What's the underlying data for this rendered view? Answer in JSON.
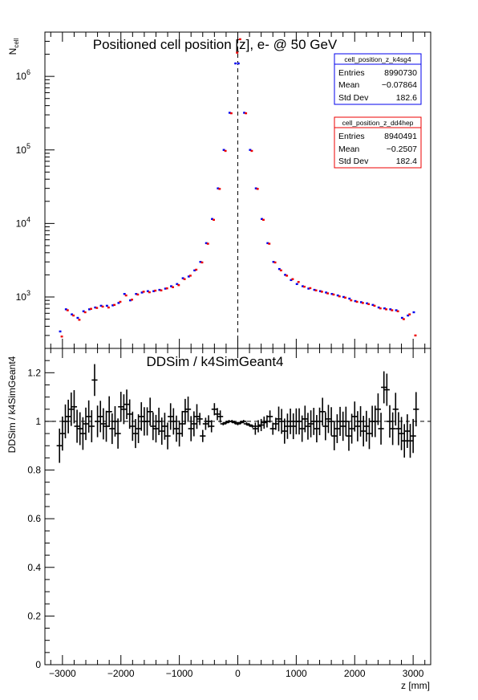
{
  "chart_data": [
    {
      "type": "scatter",
      "title": "Positioned cell position [z],  e- @ 50 GeV",
      "ylabel_main": "N",
      "ylabel_sub": "cell",
      "yscale": "log",
      "ylim": [
        200,
        4000000
      ],
      "xlim": [
        -3300,
        3300
      ],
      "y_ticks": [
        {
          "value": 1000,
          "base": "10",
          "exp": "3"
        },
        {
          "value": 10000,
          "base": "10",
          "exp": "4"
        },
        {
          "value": 100000,
          "base": "10",
          "exp": "5"
        },
        {
          "value": 1000000,
          "base": "10",
          "exp": "6"
        }
      ],
      "x_grid": false,
      "y_grid": false,
      "vertical_line_x": 0,
      "series": [
        {
          "name": "cell_position_z_k4sg4",
          "color": "#0000ee",
          "x": [
            -3025,
            -2925,
            -2825,
            -2725,
            -2625,
            -2525,
            -2425,
            -2325,
            -2225,
            -2125,
            -2025,
            -1925,
            -1825,
            -1725,
            -1625,
            -1525,
            -1425,
            -1325,
            -1225,
            -1125,
            -1025,
            -925,
            -825,
            -725,
            -625,
            -525,
            -425,
            -325,
            -225,
            -125,
            -25,
            25,
            125,
            225,
            325,
            425,
            525,
            625,
            725,
            825,
            925,
            1025,
            1125,
            1225,
            1325,
            1425,
            1525,
            1625,
            1725,
            1825,
            1925,
            2025,
            2125,
            2225,
            2325,
            2425,
            2525,
            2625,
            2725,
            2825,
            2925,
            3025
          ],
          "y": [
            340,
            680,
            580,
            520,
            640,
            680,
            720,
            760,
            760,
            770,
            830,
            1100,
            900,
            1100,
            1150,
            1200,
            1200,
            1250,
            1300,
            1400,
            1500,
            1800,
            1900,
            2300,
            3000,
            5400,
            11500,
            30000,
            100000,
            320000,
            1500000,
            1500000,
            320000,
            100000,
            30000,
            11500,
            5400,
            3000,
            2400,
            2000,
            1700,
            1500,
            1400,
            1300,
            1250,
            1200,
            1150,
            1100,
            1050,
            1000,
            950,
            880,
            850,
            820,
            780,
            720,
            700,
            680,
            660,
            520,
            560,
            620
          ]
        },
        {
          "name": "cell_position_z_dd4hep",
          "color": "#ee0000",
          "x": [
            -3025,
            -2925,
            -2825,
            -2725,
            -2625,
            -2525,
            -2425,
            -2325,
            -2225,
            -2125,
            -2025,
            -1925,
            -1825,
            -1725,
            -1625,
            -1525,
            -1425,
            -1325,
            -1225,
            -1125,
            -1025,
            -925,
            -825,
            -725,
            -625,
            -525,
            -425,
            -325,
            -225,
            -125,
            -25,
            25,
            125,
            225,
            325,
            425,
            525,
            625,
            725,
            825,
            925,
            1025,
            1125,
            1225,
            1325,
            1425,
            1525,
            1625,
            1725,
            1825,
            1925,
            2025,
            2125,
            2225,
            2325,
            2425,
            2525,
            2625,
            2725,
            2825,
            2925,
            3025
          ],
          "y": [
            290,
            660,
            560,
            490,
            620,
            690,
            710,
            740,
            720,
            780,
            860,
            1050,
            920,
            1080,
            1180,
            1160,
            1220,
            1230,
            1310,
            1360,
            1450,
            1750,
            1950,
            2350,
            2950,
            5300,
            11200,
            29500,
            97000,
            315000,
            2100000,
            3200000,
            315000,
            97000,
            29500,
            11200,
            5300,
            2950,
            2300,
            1950,
            1750,
            1600,
            1380,
            1320,
            1230,
            1180,
            1120,
            1080,
            1020,
            980,
            900,
            860,
            830,
            800,
            760,
            700,
            680,
            660,
            640,
            500,
            580,
            300
          ]
        }
      ],
      "stat_boxes": [
        {
          "title": "cell_position_z_k4sg4",
          "color": "#0000ee",
          "rows": [
            {
              "label": "Entries",
              "value": "8990730"
            },
            {
              "label": "Mean",
              "value": "−0.07864"
            },
            {
              "label": "Std Dev",
              "value": "182.6"
            }
          ]
        },
        {
          "title": "cell_position_z_dd4hep",
          "color": "#ee0000",
          "rows": [
            {
              "label": "Entries",
              "value": "8940491"
            },
            {
              "label": "Mean",
              "value": "−0.2507"
            },
            {
              "label": "Std Dev",
              "value": "182.4"
            }
          ]
        }
      ]
    },
    {
      "type": "scatter",
      "title": "DDSim / k4SimGeant4",
      "ylabel": "DDSim / k4SimGeant4",
      "xlabel": "z [mm]",
      "ylim": [
        0,
        1.3
      ],
      "xlim": [
        -3300,
        3300
      ],
      "y_ticks": [
        {
          "value": 0,
          "label": "0"
        },
        {
          "value": 0.2,
          "label": "0.2"
        },
        {
          "value": 0.4,
          "label": "0.4"
        },
        {
          "value": 0.6,
          "label": "0.6"
        },
        {
          "value": 0.8,
          "label": "0.8"
        },
        {
          "value": 1,
          "label": "1"
        },
        {
          "value": 1.2,
          "label": "1.2"
        }
      ],
      "x_ticks": [
        {
          "value": -3000,
          "label": "−3000"
        },
        {
          "value": -2000,
          "label": "−2000"
        },
        {
          "value": -1000,
          "label": "−1000"
        },
        {
          "value": 0,
          "label": "0"
        },
        {
          "value": 1000,
          "label": "1000"
        },
        {
          "value": 2000,
          "label": "2000"
        },
        {
          "value": 3000,
          "label": "3000"
        }
      ],
      "reference_line_y": 1,
      "series": [
        {
          "color": "#000000",
          "x": [
            -3050,
            -3000,
            -2950,
            -2900,
            -2850,
            -2800,
            -2750,
            -2700,
            -2650,
            -2600,
            -2550,
            -2500,
            -2450,
            -2400,
            -2350,
            -2300,
            -2250,
            -2200,
            -2150,
            -2100,
            -2050,
            -2000,
            -1950,
            -1900,
            -1850,
            -1800,
            -1750,
            -1700,
            -1650,
            -1600,
            -1550,
            -1500,
            -1450,
            -1400,
            -1350,
            -1300,
            -1250,
            -1200,
            -1150,
            -1100,
            -1050,
            -1000,
            -950,
            -900,
            -850,
            -800,
            -750,
            -700,
            -650,
            -600,
            -550,
            -500,
            -450,
            -400,
            -350,
            -300,
            -250,
            -200,
            -150,
            -100,
            -50,
            0,
            50,
            100,
            150,
            200,
            250,
            300,
            350,
            400,
            450,
            500,
            550,
            600,
            650,
            700,
            750,
            800,
            850,
            900,
            950,
            1000,
            1050,
            1100,
            1150,
            1200,
            1250,
            1300,
            1350,
            1400,
            1450,
            1500,
            1550,
            1600,
            1650,
            1700,
            1750,
            1800,
            1850,
            1900,
            1950,
            2000,
            2050,
            2100,
            2150,
            2200,
            2250,
            2300,
            2350,
            2400,
            2450,
            2500,
            2550,
            2600,
            2650,
            2700,
            2750,
            2800,
            2850,
            2900,
            2950,
            3000,
            3050
          ],
          "y": [
            0.9,
            0.95,
            1.0,
            1.02,
            1.05,
            1.06,
            0.98,
            0.97,
            0.95,
            0.99,
            1.02,
            0.98,
            1.17,
            1.0,
            1.02,
            0.99,
            0.98,
            1.04,
            0.97,
            1.0,
            0.95,
            1.06,
            1.05,
            1.07,
            1.03,
            0.98,
            0.95,
            0.97,
            1.02,
            1.0,
            1.0,
            1.04,
            0.98,
            0.97,
            1.0,
            0.96,
            0.98,
            0.94,
            1.02,
            1.0,
            0.97,
            0.95,
            0.99,
            1.04,
            1.05,
            0.97,
            0.99,
            1.02,
            1.01,
            0.94,
            0.99,
            1.0,
            0.98,
            1.05,
            1.03,
            1.02,
            0.99,
            0.995,
            1.0,
            1.0,
            0.995,
            0.99,
            0.995,
            1.0,
            0.99,
            0.985,
            0.98,
            0.97,
            0.98,
            0.985,
            0.995,
            1.0,
            1.02,
            0.97,
            0.99,
            1.01,
            1.0,
            0.96,
            0.98,
            1.0,
            0.98,
            1.0,
            1.0,
            0.97,
            1.01,
            0.98,
            0.99,
            1.0,
            0.97,
            1.0,
            1.04,
            0.98,
            1.01,
            1.0,
            0.94,
            0.97,
            1.0,
            0.98,
            1.0,
            0.94,
            0.97,
            1.02,
            0.98,
            1.0,
            0.96,
            0.98,
            0.95,
            1.0,
            1.0,
            1.05,
            0.97,
            1.14,
            1.13,
            1.0,
            0.97,
            1.05,
            0.97,
            0.95,
            0.92,
            0.96,
            0.92,
            0.94,
            1.05
          ]
        }
      ]
    }
  ]
}
